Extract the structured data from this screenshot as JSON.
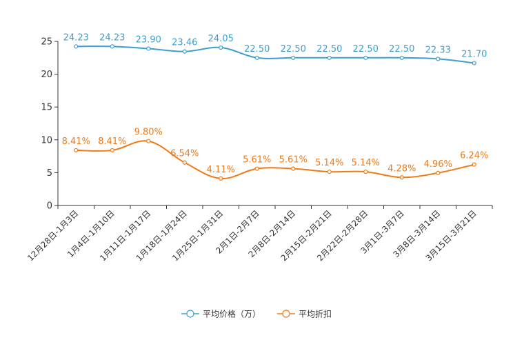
{
  "chart_data": {
    "type": "line",
    "categories": [
      "12月28日-1月3日",
      "1月4日-1月10日",
      "1月11日-1月17日",
      "1月18日-1月24日",
      "1月25日-1月31日",
      "2月1日-2月7日",
      "2月8日-2月14日",
      "2月15日-2月21日",
      "2月22日-2月28日",
      "3月1日-3月7日",
      "3月8日-3月14日",
      "3月15日-3月21日"
    ],
    "series": [
      {
        "name": "平均价格（万）",
        "color": "#3c9fd0",
        "values": [
          24.23,
          24.23,
          23.9,
          23.46,
          24.05,
          22.5,
          22.5,
          22.5,
          22.5,
          22.5,
          22.33,
          21.7
        ],
        "labels": [
          "24.23",
          "24.23",
          "23.90",
          "23.46",
          "24.05",
          "22.50",
          "22.50",
          "22.50",
          "22.50",
          "22.50",
          "22.33",
          "21.70"
        ]
      },
      {
        "name": "平均折扣",
        "color": "#f07a16",
        "values": [
          8.41,
          8.41,
          9.8,
          6.54,
          4.11,
          5.61,
          5.61,
          5.14,
          5.14,
          4.28,
          4.96,
          6.24
        ],
        "labels": [
          "8.41%",
          "8.41%",
          "9.80%",
          "6.54%",
          "4.11%",
          "5.61%",
          "5.61%",
          "5.14%",
          "5.14%",
          "4.28%",
          "4.96%",
          "6.24%"
        ]
      }
    ],
    "y_ticks": [
      0,
      5,
      10,
      15,
      20,
      25
    ],
    "y_tick_labels": [
      "0",
      "5",
      "10",
      "15",
      "20",
      "25"
    ],
    "ylim": [
      0,
      25
    ],
    "legend_position": "bottom-center",
    "grid": false
  }
}
